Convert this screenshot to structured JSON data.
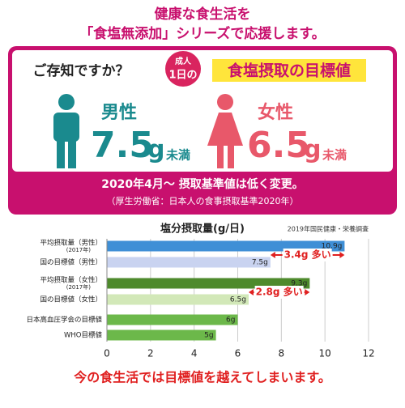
{
  "header": {
    "line1": "健康な食生活を",
    "line2": "「食塩無添加」シリーズで応援します。"
  },
  "panel": {
    "question": "ご存知ですか？",
    "badge_top": "成人",
    "badge_bottom": "1日の",
    "highlight": "食塩摂取の目標値",
    "male": {
      "label": "男性",
      "value": 7.5,
      "unit": "g",
      "suffix": "未満"
    },
    "female": {
      "label": "女性",
      "value": 6.5,
      "unit": "g",
      "suffix": "未満"
    },
    "note1": "2020年4月～ 摂取基準値は低く変更。",
    "note2": "（厚生労働省：日本人の食事摂取基準2020年）"
  },
  "chart_data": {
    "type": "bar",
    "orientation": "horizontal",
    "title": "塩分摂取量(g/日)",
    "source": "2019年国民健康・栄養調査",
    "categories": [
      "平均摂取量（男性）",
      "国の目標値（男性）",
      "平均摂取量（女性）",
      "国の目標値（女性）",
      "日本高血圧学会の目標値",
      "WHO目標値"
    ],
    "category_sublabels": [
      "(2017年)",
      null,
      "(2017年)",
      null,
      null,
      null
    ],
    "values": [
      10.9,
      7.5,
      9.3,
      6.5,
      6,
      5
    ],
    "value_labels": [
      "10.9g",
      "7.5g",
      "9.3g",
      "6.5g",
      "6g",
      "5g"
    ],
    "colors": [
      "#3f8fd6",
      "#c9d3f0",
      "#4e8a2c",
      "#d2e8b8",
      "#6cb84a",
      "#6cb84a"
    ],
    "xlim": [
      0,
      12
    ],
    "xticks": [
      0,
      2,
      4,
      6,
      8,
      10,
      12
    ],
    "grid": true,
    "annotations": [
      "3.4g 多い",
      "2.8g 多い"
    ]
  },
  "footer": "今の食生活では目標値を越えてしまいます。"
}
